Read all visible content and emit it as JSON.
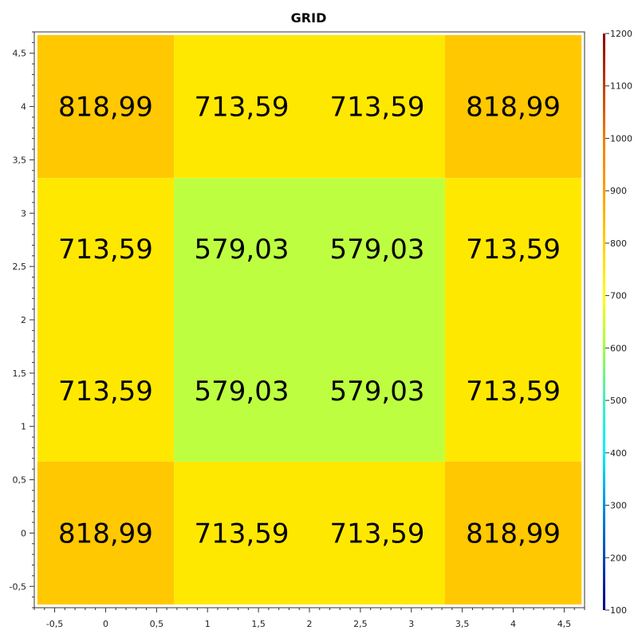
{
  "chart_data": {
    "type": "heatmap",
    "title": "GRID",
    "xlabel": "",
    "ylabel": "",
    "x_ticks": [
      "-0,5",
      "0",
      "0,5",
      "1",
      "1,5",
      "2",
      "2,5",
      "3",
      "3,5",
      "4",
      "4,5"
    ],
    "y_ticks": [
      "-0,5",
      "0",
      "0,5",
      "1",
      "1,5",
      "2",
      "2,5",
      "3",
      "3,5",
      "4",
      "4,5"
    ],
    "xlim": [
      -0.7,
      4.7
    ],
    "ylim": [
      -0.7,
      4.7
    ],
    "cells": [
      {
        "x0": -0.67,
        "x1": 0.67,
        "y0": 3.33,
        "y1": 4.67,
        "value": 818.99,
        "label": "818,99",
        "color": "#ffc800"
      },
      {
        "x0": 0.67,
        "x1": 2.0,
        "y0": 3.33,
        "y1": 4.67,
        "value": 713.59,
        "label": "713,59",
        "color": "#ffe800"
      },
      {
        "x0": 2.0,
        "x1": 3.33,
        "y0": 3.33,
        "y1": 4.67,
        "value": 713.59,
        "label": "713,59",
        "color": "#ffe800"
      },
      {
        "x0": 3.33,
        "x1": 4.67,
        "y0": 3.33,
        "y1": 4.67,
        "value": 818.99,
        "label": "818,99",
        "color": "#ffc800"
      },
      {
        "x0": -0.67,
        "x1": 0.67,
        "y0": 2.0,
        "y1": 3.33,
        "value": 713.59,
        "label": "713,59",
        "color": "#ffe800"
      },
      {
        "x0": 0.67,
        "x1": 2.0,
        "y0": 2.0,
        "y1": 3.33,
        "value": 579.03,
        "label": "579,03",
        "color": "#bdff40"
      },
      {
        "x0": 2.0,
        "x1": 3.33,
        "y0": 2.0,
        "y1": 3.33,
        "value": 579.03,
        "label": "579,03",
        "color": "#bdff40"
      },
      {
        "x0": 3.33,
        "x1": 4.67,
        "y0": 2.0,
        "y1": 3.33,
        "value": 713.59,
        "label": "713,59",
        "color": "#ffe800"
      },
      {
        "x0": -0.67,
        "x1": 0.67,
        "y0": 0.67,
        "y1": 2.0,
        "value": 713.59,
        "label": "713,59",
        "color": "#ffe800"
      },
      {
        "x0": 0.67,
        "x1": 2.0,
        "y0": 0.67,
        "y1": 2.0,
        "value": 579.03,
        "label": "579,03",
        "color": "#bdff40"
      },
      {
        "x0": 2.0,
        "x1": 3.33,
        "y0": 0.67,
        "y1": 2.0,
        "value": 579.03,
        "label": "579,03",
        "color": "#bdff40"
      },
      {
        "x0": 3.33,
        "x1": 4.67,
        "y0": 0.67,
        "y1": 2.0,
        "value": 713.59,
        "label": "713,59",
        "color": "#ffe800"
      },
      {
        "x0": -0.67,
        "x1": 0.67,
        "y0": -0.67,
        "y1": 0.67,
        "value": 818.99,
        "label": "818,99",
        "color": "#ffc800"
      },
      {
        "x0": 0.67,
        "x1": 2.0,
        "y0": -0.67,
        "y1": 0.67,
        "value": 713.59,
        "label": "713,59",
        "color": "#ffe800"
      },
      {
        "x0": 2.0,
        "x1": 3.33,
        "y0": -0.67,
        "y1": 0.67,
        "value": 713.59,
        "label": "713,59",
        "color": "#ffe800"
      },
      {
        "x0": 3.33,
        "x1": 4.67,
        "y0": -0.67,
        "y1": 0.67,
        "value": 818.99,
        "label": "818,99",
        "color": "#ffc800"
      }
    ],
    "colorbar": {
      "range": [
        100,
        1200
      ],
      "ticks": [
        "100",
        "200",
        "300",
        "400",
        "500",
        "600",
        "700",
        "800",
        "900",
        "1000",
        "1100",
        "1200"
      ],
      "stops": [
        {
          "value": 100,
          "color": "#00008b"
        },
        {
          "value": 300,
          "color": "#0090e0"
        },
        {
          "value": 400,
          "color": "#00f0ff"
        },
        {
          "value": 500,
          "color": "#40f0c0"
        },
        {
          "value": 600,
          "color": "#a0ff40"
        },
        {
          "value": 700,
          "color": "#ffff00"
        },
        {
          "value": 800,
          "color": "#ffd000"
        },
        {
          "value": 900,
          "color": "#ffa000"
        },
        {
          "value": 1000,
          "color": "#f08000"
        },
        {
          "value": 1100,
          "color": "#c04000"
        },
        {
          "value": 1200,
          "color": "#8b0000"
        }
      ]
    },
    "grid": false
  }
}
